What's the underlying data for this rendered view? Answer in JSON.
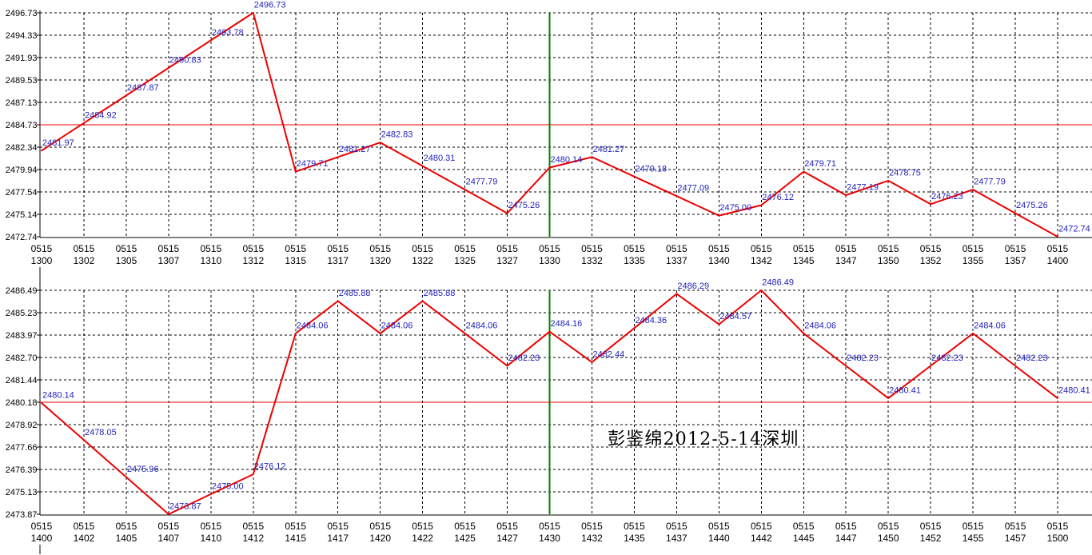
{
  "annotation": "彭鉴绵2012-5-14深圳",
  "colors": {
    "price_line": "#ee0000",
    "mid_line": "#ee0000",
    "time_marker": "#008000",
    "point_label": "#2323bf",
    "grid": "#000000",
    "axis": "#000000",
    "text": "#000000",
    "background": "#ffffff"
  },
  "chart_data": [
    {
      "type": "line",
      "date_row": "0515",
      "x": [
        "1300",
        "1302",
        "1305",
        "1307",
        "1310",
        "1312",
        "1315",
        "1317",
        "1320",
        "1322",
        "1325",
        "1327",
        "1330",
        "1332",
        "1335",
        "1337",
        "1340",
        "1342",
        "1345",
        "1347",
        "1350",
        "1352",
        "1355",
        "1357",
        "1400"
      ],
      "values": [
        "2481.97",
        "2484.92",
        "2487.87",
        "2490.83",
        "2493.78",
        "2496.73",
        "2479.71",
        "2481.27",
        "2482.83",
        "2480.31",
        "2477.79",
        "2475.26",
        "2480.14",
        "2481.27",
        "2479.18",
        "2477.09",
        "2475.00",
        "2476.12",
        "2479.71",
        "2477.19",
        "2478.75",
        "2476.23",
        "2477.79",
        "2475.26",
        "2472.74"
      ],
      "y_ticks": [
        "2496.73",
        "2494.33",
        "2491.93",
        "2489.53",
        "2487.13",
        "2484.73",
        "2482.34",
        "2479.94",
        "2477.54",
        "2475.14",
        "2472.74"
      ],
      "ylim": [
        2472.74,
        2496.73
      ],
      "hline": "2484.73",
      "vline_index": 12,
      "grid": true,
      "legend": null
    },
    {
      "type": "line",
      "date_row": "0515",
      "x": [
        "1400",
        "1402",
        "1405",
        "1407",
        "1410",
        "1412",
        "1415",
        "1417",
        "1420",
        "1422",
        "1425",
        "1427",
        "1430",
        "1432",
        "1435",
        "1437",
        "1440",
        "1442",
        "1445",
        "1447",
        "1450",
        "1452",
        "1455",
        "1457",
        "1500"
      ],
      "values": [
        "2480.14",
        "2478.05",
        "2475.96",
        "2473.87",
        "2475.00",
        "2476.12",
        "2484.06",
        "2485.88",
        "2484.06",
        "2485.88",
        "2484.06",
        "2482.23",
        "2484.16",
        "2482.44",
        "2484.36",
        "2486.29",
        "2484.57",
        "2486.49",
        "2484.06",
        "2482.23",
        "2480.41",
        "2482.23",
        "2484.06",
        "2482.23",
        "2480.41"
      ],
      "y_ticks": [
        "2486.49",
        "2485.23",
        "2483.97",
        "2482.70",
        "2481.44",
        "2480.18",
        "2478.92",
        "2477.66",
        "2476.39",
        "2475.13",
        "2473.87"
      ],
      "ylim": [
        2473.87,
        2486.49
      ],
      "hline": "2480.18",
      "vline_index": 12,
      "grid": true,
      "legend": null
    }
  ]
}
